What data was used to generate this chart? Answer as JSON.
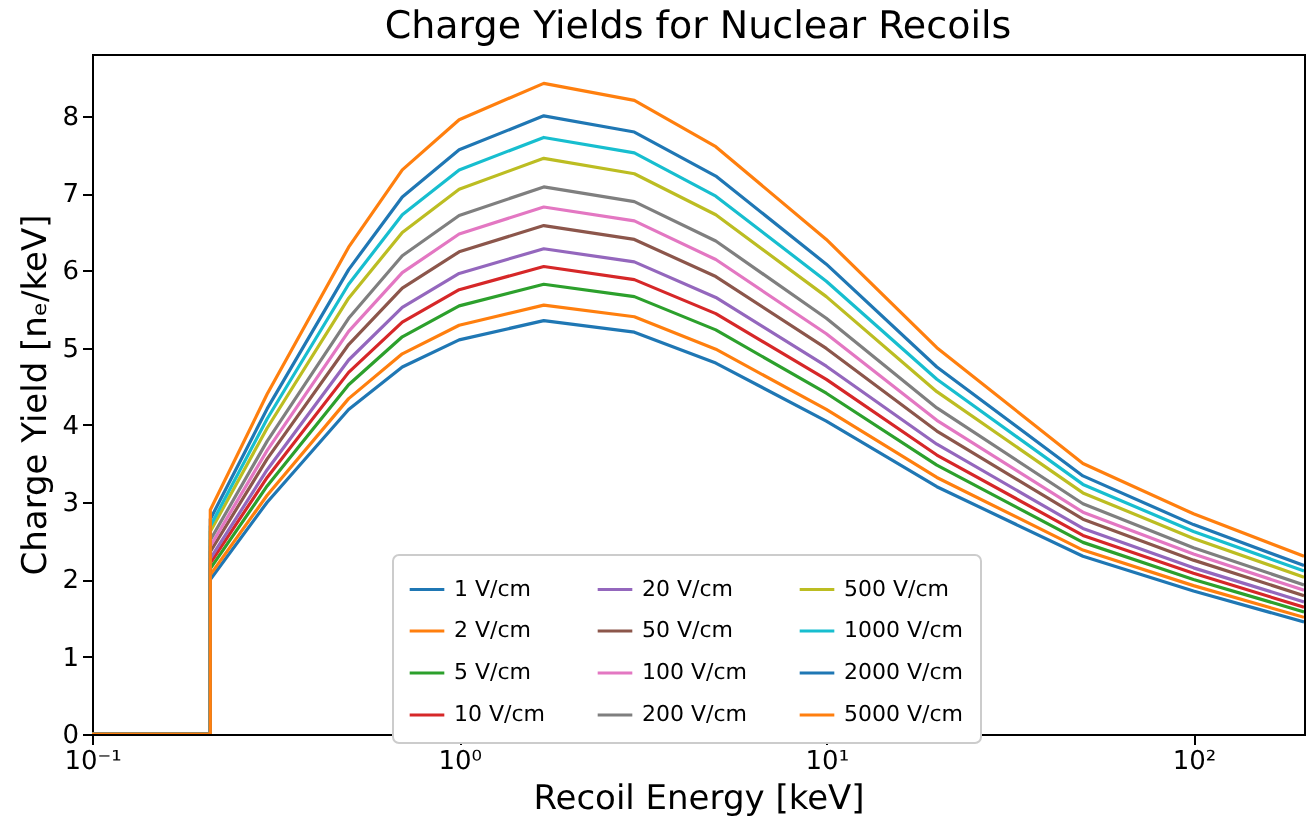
{
  "chart_data": {
    "type": "line",
    "title": "Charge Yields for Nuclear Recoils",
    "xlabel": "Recoil Energy [keV]",
    "ylabel": "Charge Yield [nₑ/keV]",
    "log": "x",
    "xlim": [
      0.1,
      200
    ],
    "xticks": [
      {
        "value": 0.1,
        "label": "10⁻¹"
      },
      {
        "value": 1,
        "label": "10⁰"
      },
      {
        "value": 10,
        "label": "10¹"
      },
      {
        "value": 100,
        "label": "10²"
      }
    ],
    "ylim": [
      0,
      8.8
    ],
    "yticks": [
      0,
      1,
      2,
      3,
      4,
      5,
      6,
      7,
      8
    ],
    "grid": false,
    "legend": "bottom",
    "marker": "none",
    "line_style": "solid",
    "x": [
      0.1,
      0.21,
      0.21,
      0.3,
      0.5,
      0.7,
      1,
      1.7,
      3,
      5,
      10,
      20,
      50,
      100,
      200
    ],
    "series": [
      {
        "name": "1 V/cm",
        "color": "#1f77b4",
        "values": [
          0,
          0,
          2.0,
          3.0,
          4.2,
          4.75,
          5.1,
          5.35,
          5.2,
          4.8,
          4.05,
          3.2,
          2.3,
          1.85,
          1.45
        ]
      },
      {
        "name": "2 V/cm",
        "color": "#ff7f0e",
        "values": [
          0,
          0,
          2.06,
          3.09,
          4.34,
          4.92,
          5.29,
          5.55,
          5.4,
          4.98,
          4.2,
          3.32,
          2.38,
          1.92,
          1.51
        ]
      },
      {
        "name": "5 V/cm",
        "color": "#2ca02c",
        "values": [
          0,
          0,
          2.14,
          3.21,
          4.52,
          5.14,
          5.54,
          5.82,
          5.66,
          5.23,
          4.41,
          3.48,
          2.48,
          2.0,
          1.58
        ]
      },
      {
        "name": "10 V/cm",
        "color": "#d62728",
        "values": [
          0,
          0,
          2.21,
          3.32,
          4.68,
          5.33,
          5.75,
          6.05,
          5.88,
          5.44,
          4.59,
          3.61,
          2.57,
          2.08,
          1.64
        ]
      },
      {
        "name": "20 V/cm",
        "color": "#9467bd",
        "values": [
          0,
          0,
          2.27,
          3.42,
          4.84,
          5.52,
          5.96,
          6.28,
          6.11,
          5.65,
          4.76,
          3.75,
          2.66,
          2.15,
          1.71
        ]
      },
      {
        "name": "50 V/cm",
        "color": "#8c564b",
        "values": [
          0,
          0,
          2.36,
          3.56,
          5.04,
          5.77,
          6.24,
          6.58,
          6.4,
          5.92,
          4.99,
          3.92,
          2.78,
          2.25,
          1.79
        ]
      },
      {
        "name": "100 V/cm",
        "color": "#e377c2",
        "values": [
          0,
          0,
          2.43,
          3.67,
          5.21,
          5.97,
          6.47,
          6.82,
          6.64,
          6.14,
          5.18,
          4.06,
          2.87,
          2.33,
          1.86
        ]
      },
      {
        "name": "200 V/cm",
        "color": "#7f7f7f",
        "values": [
          0,
          0,
          2.51,
          3.79,
          5.38,
          6.19,
          6.71,
          7.08,
          6.89,
          6.38,
          5.38,
          4.22,
          2.98,
          2.41,
          1.93
        ]
      },
      {
        "name": "500 V/cm",
        "color": "#bcbd22",
        "values": [
          0,
          0,
          2.62,
          3.96,
          5.64,
          6.49,
          7.05,
          7.45,
          7.25,
          6.72,
          5.66,
          4.43,
          3.12,
          2.53,
          2.03
        ]
      },
      {
        "name": "1000 V/cm",
        "color": "#17becf",
        "values": [
          0,
          0,
          2.69,
          4.08,
          5.82,
          6.72,
          7.3,
          7.72,
          7.52,
          6.96,
          5.86,
          4.59,
          3.23,
          2.62,
          2.11
        ]
      },
      {
        "name": "2000 V/cm",
        "color": "#1f77b4",
        "values": [
          0,
          0,
          2.78,
          4.21,
          6.01,
          6.95,
          7.56,
          8.0,
          7.79,
          7.22,
          6.08,
          4.75,
          3.34,
          2.71,
          2.18
        ]
      },
      {
        "name": "5000 V/cm",
        "color": "#ff7f0e",
        "values": [
          0,
          0,
          2.9,
          4.4,
          6.3,
          7.3,
          7.95,
          8.42,
          8.2,
          7.6,
          6.4,
          5.0,
          3.5,
          2.85,
          2.3
        ]
      }
    ]
  }
}
